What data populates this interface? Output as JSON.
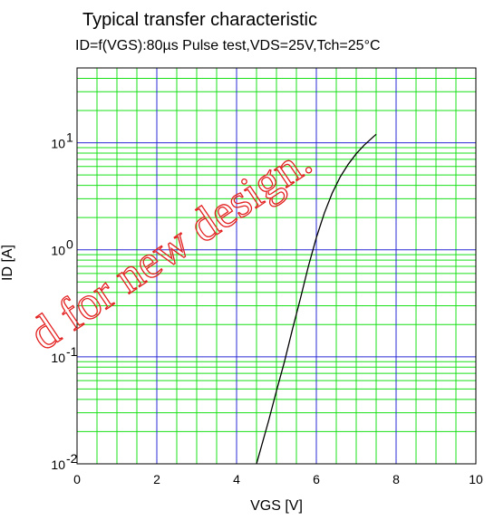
{
  "chart_data": {
    "type": "line",
    "title": "Typical transfer characteristic",
    "subtitle": "ID=f(VGS):80µs Pulse test,VDS=25V,Tch=25°C",
    "xlabel": "VGS [V]",
    "ylabel": "ID [A]",
    "xlim": [
      0,
      10
    ],
    "ylim": [
      0.01,
      50
    ],
    "yscale": "log",
    "x_ticks": [
      "0",
      "2",
      "4",
      "6",
      "8",
      "10"
    ],
    "y_ticks": [
      {
        "value": 0.01,
        "base": "10",
        "exp": "-2"
      },
      {
        "value": 0.1,
        "base": "10",
        "exp": "-1"
      },
      {
        "value": 1,
        "base": "10",
        "exp": "0"
      },
      {
        "value": 10,
        "base": "10",
        "exp": "1"
      }
    ],
    "grid": true,
    "colors": {
      "major_grid": "#2a2ad6",
      "minor_grid": "#19e019",
      "curve": "#000000",
      "watermark": "#e32020"
    },
    "series": [
      {
        "x": [
          4.5,
          4.8,
          5.0,
          5.2,
          5.4,
          5.6,
          5.8,
          6.0,
          6.2,
          6.4,
          6.6,
          6.8,
          7.0,
          7.2,
          7.5
        ],
        "y": [
          0.01,
          0.025,
          0.048,
          0.09,
          0.18,
          0.35,
          0.7,
          1.3,
          2.2,
          3.4,
          4.8,
          6.3,
          7.9,
          9.5,
          12.0
        ]
      }
    ],
    "watermark": "d for new design."
  }
}
